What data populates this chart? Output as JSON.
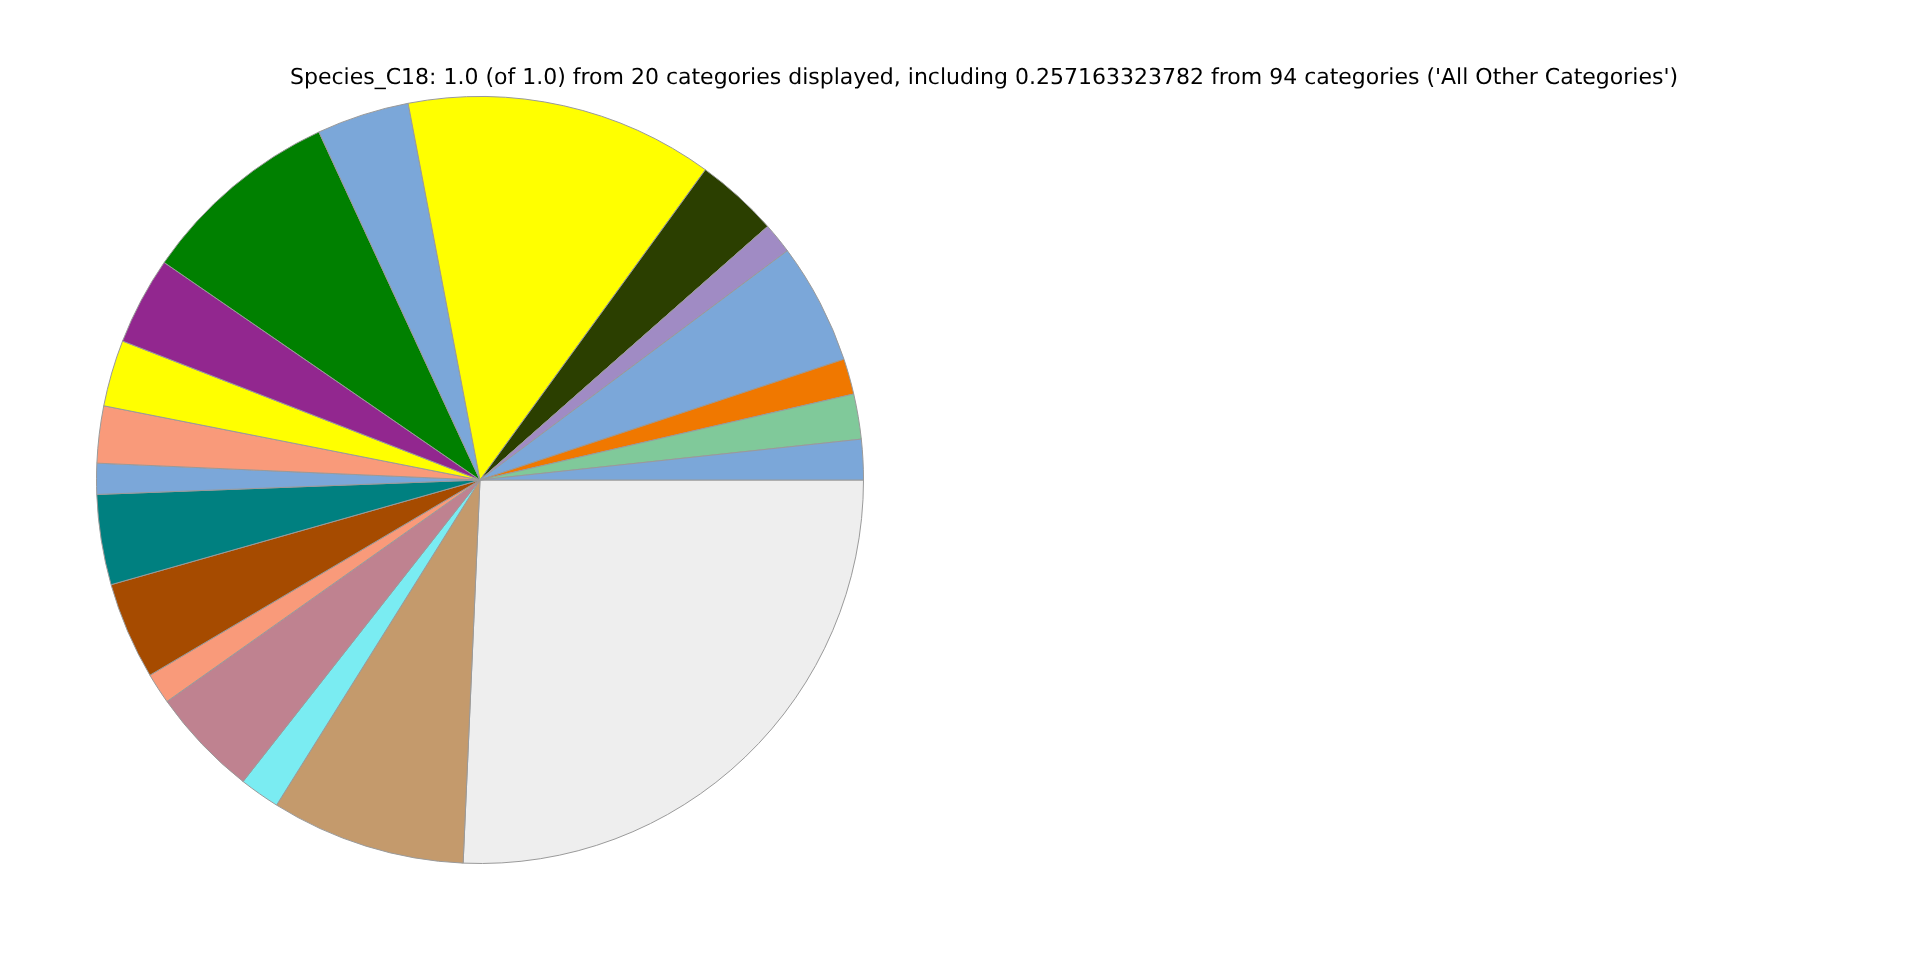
{
  "chart_data": {
    "type": "pie",
    "title": "Species_C18: 1.0 (of 1.0) from 20 categories displayed, including 0.257163323782 from 94 categories ('All Other Categories')",
    "categories": [
      null,
      null,
      null,
      null,
      null,
      null,
      null,
      null,
      null,
      null,
      null,
      null,
      null,
      null,
      null,
      null,
      null,
      null,
      null,
      null
    ],
    "values": [
      1.7,
      1.9,
      1.5,
      5.1,
      1.3,
      3.5,
      13.0,
      3.9,
      8.5,
      3.7,
      2.8,
      2.4,
      1.3,
      3.8,
      4.1,
      1.3,
      4.6,
      1.7,
      8.2,
      25.7
    ],
    "colors": [
      "#7ba7d9",
      "#80c99a",
      "#f07800",
      "#7ba7d9",
      "#a08bc4",
      "#2b3f00",
      "#ffff00",
      "#7ba7d9",
      "#008000",
      "#92278f",
      "#ffff00",
      "#f99a7a",
      "#7ba7d9",
      "#008080",
      "#a64b00",
      "#f99a7a",
      "#bf8290",
      "#7aecf2",
      "#c49a6c",
      "#eeeeee"
    ],
    "legend": false
  }
}
